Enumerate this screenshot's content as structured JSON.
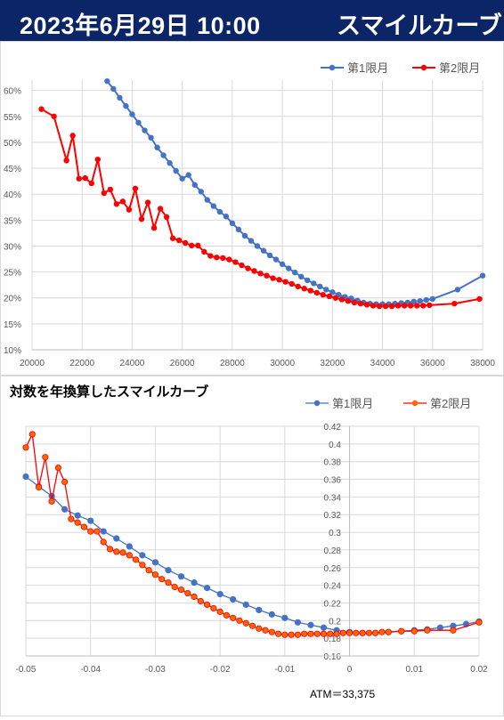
{
  "header": {
    "date": "2023年6月29日 10:00",
    "subtitle": "スマイルカーブ"
  },
  "chart_data": [
    {
      "type": "line",
      "title": "",
      "xlabel": "",
      "ylabel": "",
      "xlim": [
        20000,
        38000
      ],
      "ylim": [
        0.1,
        0.62
      ],
      "x_ticks": [
        20000,
        22000,
        24000,
        26000,
        28000,
        30000,
        32000,
        34000,
        36000,
        38000
      ],
      "x_tick_labels": [
        "20000",
        "22000",
        "24000",
        "26000",
        "28000",
        "30000",
        "32000",
        "34000",
        "36000",
        "38000"
      ],
      "y_ticks": [
        0.1,
        0.15,
        0.2,
        0.25,
        0.3,
        0.35,
        0.4,
        0.45,
        0.5,
        0.55,
        0.6
      ],
      "y_tick_labels": [
        "10%",
        "15%",
        "20%",
        "25%",
        "30%",
        "35%",
        "40%",
        "45%",
        "50%",
        "55%",
        "60%"
      ],
      "grid": true,
      "legend": "top-right",
      "series": [
        {
          "name": "第1限月",
          "color": "#4472c4",
          "x": [
            23000,
            23250,
            23500,
            23750,
            24000,
            24250,
            24500,
            24750,
            25000,
            25250,
            25500,
            25750,
            26000,
            26250,
            26500,
            26750,
            27000,
            27250,
            27500,
            27750,
            28000,
            28250,
            28500,
            28750,
            29000,
            29250,
            29500,
            29750,
            30000,
            30250,
            30500,
            30750,
            31000,
            31250,
            31500,
            31750,
            32000,
            32250,
            32500,
            32750,
            33000,
            33250,
            33500,
            33750,
            34000,
            34250,
            34500,
            34750,
            35000,
            35250,
            35500,
            35750,
            36000,
            37000,
            38000
          ],
          "y": [
            0.618,
            0.603,
            0.586,
            0.57,
            0.554,
            0.538,
            0.523,
            0.509,
            0.49,
            0.475,
            0.46,
            0.445,
            0.43,
            0.437,
            0.418,
            0.405,
            0.389,
            0.377,
            0.366,
            0.357,
            0.344,
            0.332,
            0.32,
            0.31,
            0.3,
            0.291,
            0.282,
            0.274,
            0.265,
            0.257,
            0.249,
            0.241,
            0.234,
            0.228,
            0.222,
            0.216,
            0.211,
            0.206,
            0.202,
            0.199,
            0.195,
            0.191,
            0.189,
            0.188,
            0.188,
            0.188,
            0.189,
            0.19,
            0.191,
            0.193,
            0.194,
            0.196,
            0.198,
            0.216,
            0.243
          ]
        },
        {
          "name": "第2限月",
          "color": "#ff0000",
          "x": [
            20375,
            20875,
            21375,
            21625,
            21875,
            22125,
            22375,
            22625,
            22875,
            23125,
            23375,
            23625,
            23875,
            24125,
            24375,
            24625,
            24875,
            25125,
            25375,
            25625,
            25875,
            26125,
            26375,
            26625,
            26875,
            27125,
            27375,
            27625,
            27875,
            28125,
            28375,
            28625,
            28875,
            29125,
            29375,
            29625,
            29875,
            30125,
            30375,
            30625,
            30875,
            31125,
            31375,
            31625,
            31875,
            32125,
            32375,
            32625,
            32875,
            33125,
            33375,
            33625,
            33875,
            34125,
            34375,
            34625,
            34875,
            35125,
            35375,
            35625,
            35875,
            36875,
            37875
          ],
          "y": [
            0.564,
            0.55,
            0.465,
            0.513,
            0.43,
            0.431,
            0.421,
            0.467,
            0.402,
            0.409,
            0.381,
            0.386,
            0.37,
            0.411,
            0.352,
            0.384,
            0.335,
            0.372,
            0.356,
            0.315,
            0.311,
            0.306,
            0.301,
            0.301,
            0.289,
            0.281,
            0.278,
            0.277,
            0.274,
            0.269,
            0.263,
            0.257,
            0.252,
            0.247,
            0.243,
            0.238,
            0.235,
            0.231,
            0.227,
            0.222,
            0.218,
            0.214,
            0.21,
            0.206,
            0.203,
            0.2,
            0.197,
            0.194,
            0.191,
            0.189,
            0.187,
            0.185,
            0.184,
            0.184,
            0.184,
            0.185,
            0.185,
            0.185,
            0.185,
            0.185,
            0.186,
            0.189,
            0.198
          ]
        }
      ]
    },
    {
      "type": "line",
      "title": "対数を年換算したスマイルカーブ",
      "xlabel": "",
      "ylabel": "",
      "xlim": [
        -0.05,
        0.02
      ],
      "ylim": [
        0.16,
        0.42
      ],
      "x_ticks": [
        -0.05,
        -0.04,
        -0.03,
        -0.02,
        -0.01,
        0,
        0.01,
        0.02
      ],
      "x_tick_labels": [
        "-0.05",
        "-0.04",
        "-0.03",
        "-0.02",
        "-0.01",
        "0",
        "0.01",
        "0.02"
      ],
      "y_ticks": [
        0.16,
        0.18,
        0.2,
        0.22,
        0.24,
        0.26,
        0.28,
        0.3,
        0.32,
        0.34,
        0.36,
        0.38,
        0.4,
        0.42
      ],
      "y_tick_labels": [
        "0.16",
        "0.18",
        "0.2",
        "0.22",
        "0.24",
        "0.26",
        "0.28",
        "0.3",
        "0.32",
        "0.34",
        "0.36",
        "0.38",
        "0.4",
        "0.42"
      ],
      "grid": true,
      "legend": "top-right",
      "annotation": "ATM＝33,375",
      "series": [
        {
          "name": "第1限月",
          "color": "#4472c4",
          "marker": "#4472c4",
          "x": [
            -0.05,
            -0.048,
            -0.046,
            -0.044,
            -0.042,
            -0.04,
            -0.038,
            -0.036,
            -0.034,
            -0.032,
            -0.03,
            -0.028,
            -0.026,
            -0.024,
            -0.022,
            -0.02,
            -0.018,
            -0.016,
            -0.014,
            -0.012,
            -0.01,
            -0.008,
            -0.006,
            -0.004,
            -0.002,
            0.0,
            0.002,
            0.004,
            0.006,
            0.008,
            0.01,
            0.012,
            0.014,
            0.016,
            0.018,
            0.02
          ],
          "y": [
            0.363,
            0.352,
            0.341,
            0.326,
            0.319,
            0.313,
            0.301,
            0.293,
            0.284,
            0.274,
            0.266,
            0.257,
            0.25,
            0.243,
            0.237,
            0.23,
            0.224,
            0.218,
            0.212,
            0.207,
            0.203,
            0.198,
            0.195,
            0.192,
            0.189,
            0.187,
            0.186,
            0.186,
            0.187,
            0.188,
            0.189,
            0.19,
            0.192,
            0.194,
            0.196,
            0.199
          ]
        },
        {
          "name": "第2限月",
          "color": "#ff0000",
          "marker": "#ff6600",
          "x": [
            -0.05,
            -0.049,
            -0.048,
            -0.047,
            -0.046,
            -0.045,
            -0.044,
            -0.043,
            -0.042,
            -0.041,
            -0.04,
            -0.039,
            -0.038,
            -0.037,
            -0.036,
            -0.035,
            -0.034,
            -0.033,
            -0.032,
            -0.031,
            -0.03,
            -0.029,
            -0.028,
            -0.027,
            -0.026,
            -0.025,
            -0.024,
            -0.023,
            -0.022,
            -0.021,
            -0.02,
            -0.019,
            -0.018,
            -0.017,
            -0.016,
            -0.015,
            -0.014,
            -0.013,
            -0.012,
            -0.011,
            -0.01,
            -0.009,
            -0.008,
            -0.007,
            -0.006,
            -0.005,
            -0.004,
            -0.003,
            -0.002,
            -0.001,
            0.0,
            0.001,
            0.002,
            0.003,
            0.004,
            0.005,
            0.006,
            0.008,
            0.01,
            0.012,
            0.016,
            0.02
          ],
          "y": [
            0.396,
            0.411,
            0.351,
            0.385,
            0.335,
            0.373,
            0.357,
            0.315,
            0.311,
            0.306,
            0.301,
            0.301,
            0.289,
            0.281,
            0.278,
            0.277,
            0.274,
            0.269,
            0.263,
            0.257,
            0.252,
            0.247,
            0.243,
            0.238,
            0.235,
            0.231,
            0.227,
            0.222,
            0.218,
            0.214,
            0.21,
            0.206,
            0.203,
            0.2,
            0.197,
            0.194,
            0.191,
            0.189,
            0.187,
            0.185,
            0.184,
            0.184,
            0.184,
            0.185,
            0.185,
            0.185,
            0.185,
            0.185,
            0.185,
            0.186,
            0.186,
            0.186,
            0.186,
            0.186,
            0.186,
            0.187,
            0.187,
            0.188,
            0.188,
            0.189,
            0.189,
            0.198
          ]
        }
      ]
    }
  ]
}
